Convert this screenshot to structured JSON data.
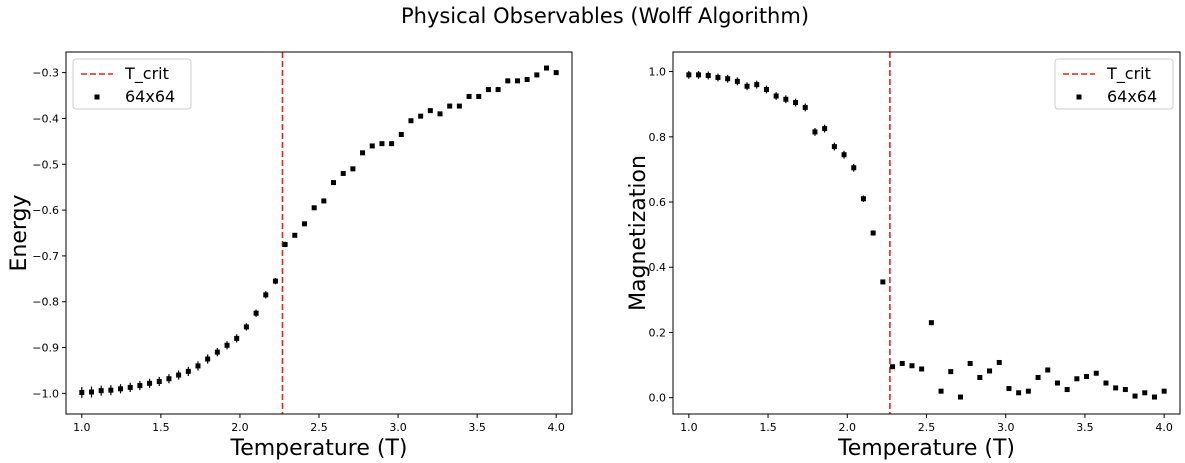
{
  "figure": {
    "title": "Physical Observables (Wolff Algorithm)"
  },
  "chart_data": [
    {
      "type": "scatter",
      "title": "",
      "xlabel": "Temperature (T)",
      "ylabel": "Energy",
      "xlim": [
        0.9,
        4.1
      ],
      "ylim": [
        -1.045,
        -0.255
      ],
      "xticks": [
        1.0,
        1.5,
        2.0,
        2.5,
        3.0,
        3.5,
        4.0
      ],
      "xtick_labels": [
        "1.0",
        "1.5",
        "2.0",
        "2.5",
        "3.0",
        "3.5",
        "4.0"
      ],
      "yticks": [
        -1.0,
        -0.9,
        -0.8,
        -0.7,
        -0.6,
        -0.5,
        -0.4,
        -0.3
      ],
      "ytick_labels": [
        "−1.0",
        "−0.9",
        "−0.8",
        "−0.7",
        "−0.6",
        "−0.5",
        "−0.4",
        "−0.3"
      ],
      "legend_position": "upper-left",
      "reference_line": {
        "name": "T_crit",
        "x": 2.269,
        "color": "#e8201e",
        "style": "dashed"
      },
      "series": [
        {
          "name": "64x64",
          "color": "#000000",
          "x": [
            1.0,
            1.0612,
            1.1224,
            1.1837,
            1.2449,
            1.3061,
            1.3673,
            1.4286,
            1.4898,
            1.551,
            1.6122,
            1.6735,
            1.7347,
            1.7959,
            1.8571,
            1.9184,
            1.9796,
            2.0408,
            2.102,
            2.1633,
            2.2245,
            2.2857,
            2.3469,
            2.4082,
            2.4694,
            2.5306,
            2.5918,
            2.6531,
            2.7143,
            2.7755,
            2.8367,
            2.898,
            2.9592,
            3.0204,
            3.0816,
            3.1429,
            3.2041,
            3.2653,
            3.3265,
            3.3878,
            3.449,
            3.5102,
            3.5714,
            3.6327,
            3.6939,
            3.7551,
            3.8163,
            3.8776,
            3.9388,
            4.0
          ],
          "y": [
            -0.998,
            -0.997,
            -0.994,
            -0.993,
            -0.99,
            -0.987,
            -0.983,
            -0.978,
            -0.974,
            -0.968,
            -0.96,
            -0.952,
            -0.94,
            -0.925,
            -0.91,
            -0.895,
            -0.88,
            -0.855,
            -0.825,
            -0.785,
            -0.755,
            -0.675,
            -0.655,
            -0.63,
            -0.595,
            -0.58,
            -0.54,
            -0.52,
            -0.51,
            -0.475,
            -0.46,
            -0.455,
            -0.455,
            -0.435,
            -0.405,
            -0.395,
            -0.383,
            -0.39,
            -0.373,
            -0.373,
            -0.352,
            -0.352,
            -0.337,
            -0.337,
            -0.318,
            -0.318,
            -0.315,
            -0.305,
            -0.29,
            -0.3
          ],
          "yerr": [
            0.012,
            0.012,
            0.011,
            0.011,
            0.01,
            0.01,
            0.01,
            0.01,
            0.01,
            0.01,
            0.01,
            0.01,
            0.01,
            0.01,
            0.009,
            0.009,
            0.009,
            0.008,
            0.008,
            0.008,
            0.007,
            0.006,
            0.004,
            0.004,
            0.004,
            0.004,
            0.003,
            0.003,
            0.003,
            0.003,
            0.003,
            0.003,
            0.003,
            0.003,
            0.003,
            0.003,
            0.003,
            0.003,
            0.003,
            0.003,
            0.003,
            0.003,
            0.003,
            0.003,
            0.003,
            0.003,
            0.003,
            0.003,
            0.003,
            0.003
          ]
        }
      ]
    },
    {
      "type": "scatter",
      "title": "",
      "xlabel": "Temperature (T)",
      "ylabel": "Magnetization",
      "xlim": [
        0.9,
        4.1
      ],
      "ylim": [
        -0.05,
        1.06
      ],
      "xticks": [
        1.0,
        1.5,
        2.0,
        2.5,
        3.0,
        3.5,
        4.0
      ],
      "xtick_labels": [
        "1.0",
        "1.5",
        "2.0",
        "2.5",
        "3.0",
        "3.5",
        "4.0"
      ],
      "yticks": [
        0.0,
        0.2,
        0.4,
        0.6,
        0.8,
        1.0
      ],
      "ytick_labels": [
        "0.0",
        "0.2",
        "0.4",
        "0.6",
        "0.8",
        "1.0"
      ],
      "legend_position": "upper-right",
      "reference_line": {
        "name": "T_crit",
        "x": 2.269,
        "color": "#e8201e",
        "style": "dashed"
      },
      "series": [
        {
          "name": "64x64",
          "color": "#000000",
          "x": [
            1.0,
            1.0612,
            1.1224,
            1.1837,
            1.2449,
            1.3061,
            1.3673,
            1.4286,
            1.4898,
            1.551,
            1.6122,
            1.6735,
            1.7347,
            1.7959,
            1.8571,
            1.9184,
            1.9796,
            2.0408,
            2.102,
            2.1633,
            2.2245,
            2.2857,
            2.3469,
            2.4082,
            2.4694,
            2.5306,
            2.5918,
            2.6531,
            2.7143,
            2.7755,
            2.8367,
            2.898,
            2.9592,
            3.0204,
            3.0816,
            3.1429,
            3.2041,
            3.2653,
            3.3265,
            3.3878,
            3.449,
            3.5102,
            3.5714,
            3.6327,
            3.6939,
            3.7551,
            3.8163,
            3.8776,
            3.9388,
            4.0
          ],
          "y": [
            0.99,
            0.99,
            0.988,
            0.982,
            0.978,
            0.97,
            0.955,
            0.96,
            0.945,
            0.925,
            0.915,
            0.905,
            0.89,
            0.815,
            0.825,
            0.77,
            0.745,
            0.705,
            0.61,
            0.505,
            0.355,
            0.095,
            0.105,
            0.098,
            0.088,
            0.23,
            0.02,
            0.08,
            0.002,
            0.105,
            0.062,
            0.082,
            0.108,
            0.028,
            0.015,
            0.02,
            0.062,
            0.085,
            0.045,
            0.025,
            0.058,
            0.065,
            0.075,
            0.045,
            0.03,
            0.025,
            0.005,
            0.015,
            0.002,
            0.02
          ],
          "yerr": [
            0.012,
            0.012,
            0.012,
            0.012,
            0.012,
            0.012,
            0.012,
            0.012,
            0.012,
            0.012,
            0.012,
            0.012,
            0.012,
            0.012,
            0.012,
            0.012,
            0.012,
            0.012,
            0.01,
            0.008,
            0.006,
            0.004,
            0.003,
            0.003,
            0.003,
            0.003,
            0.003,
            0.003,
            0.003,
            0.003,
            0.003,
            0.003,
            0.003,
            0.003,
            0.003,
            0.003,
            0.003,
            0.003,
            0.003,
            0.003,
            0.003,
            0.003,
            0.003,
            0.003,
            0.003,
            0.003,
            0.003,
            0.003,
            0.003,
            0.003
          ]
        }
      ]
    }
  ]
}
